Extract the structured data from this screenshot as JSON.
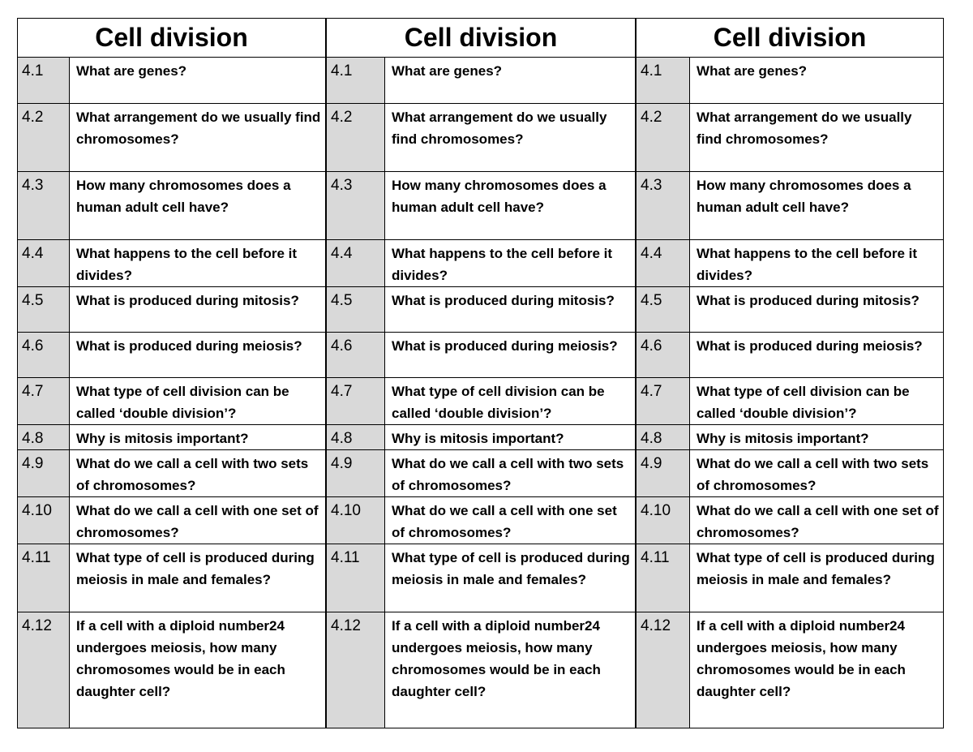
{
  "tables": [
    {
      "title": "Cell division",
      "rows": [
        [
          "4.1",
          "What are genes?"
        ],
        [
          "4.2",
          "What arrangement do we usually find chromosomes?"
        ],
        [
          "4.3",
          "How many chromosomes does a human adult cell have?"
        ],
        [
          "4.4",
          "What happens to the cell before it divides?"
        ],
        [
          "4.5",
          "What is produced during mitosis?"
        ],
        [
          "4.6",
          "What is produced during meiosis?"
        ],
        [
          "4.7",
          "What type of cell division can be called ‘double division’?"
        ],
        [
          "4.8",
          "Why is mitosis important?"
        ],
        [
          "4.9",
          "What do we call a cell with two sets of chromosomes?"
        ],
        [
          "4.10",
          "What do we call a cell with one set of chromosomes?"
        ],
        [
          "4.11",
          "What type of cell is produced during meiosis in male and females?"
        ],
        [
          "4.12",
          "If a cell with a diploid number24 undergoes meiosis, how many chromosomes would be in each daughter cell?"
        ]
      ]
    },
    {
      "title": "Cell division",
      "rows": [
        [
          "4.1",
          "What are genes?"
        ],
        [
          "4.2",
          "What arrangement do we usually find chromosomes?"
        ],
        [
          "4.3",
          "How many chromosomes does a human adult cell have?"
        ],
        [
          "4.4",
          "What happens to the cell before it divides?"
        ],
        [
          "4.5",
          "What is produced during mitosis?"
        ],
        [
          "4.6",
          "What is produced during meiosis?"
        ],
        [
          "4.7",
          "What type of cell division can be called ‘double division’?"
        ],
        [
          "4.8",
          "Why is mitosis important?"
        ],
        [
          "4.9",
          "What do we call a cell with two sets of chromosomes?"
        ],
        [
          "4.10",
          "What do we call a cell with one set of chromosomes?"
        ],
        [
          "4.11",
          "What type of cell is produced during meiosis in male and females?"
        ],
        [
          "4.12",
          "If a cell with a diploid number24 undergoes meiosis, how many chromosomes would be in each daughter cell?"
        ]
      ]
    },
    {
      "title": "Cell division",
      "rows": [
        [
          "4.1",
          "What are genes?"
        ],
        [
          "4.2",
          "What arrangement do we usually find chromosomes?"
        ],
        [
          "4.3",
          "How many chromosomes does a human adult cell have?"
        ],
        [
          "4.4",
          "What happens to the cell before it divides?"
        ],
        [
          "4.5",
          "What is produced during mitosis?"
        ],
        [
          "4.6",
          "What is produced during meiosis?"
        ],
        [
          "4.7",
          "What type of cell division can be called ‘double division’?"
        ],
        [
          "4.8",
          "Why is mitosis important?"
        ],
        [
          "4.9",
          "What do we call a cell with two sets of chromosomes?"
        ],
        [
          "4.10",
          "What do we call a cell with one set of chromosomes?"
        ],
        [
          "4.11",
          "What type of cell is produced during meiosis in male and females?"
        ],
        [
          "4.12",
          "If a cell with a diploid number24 undergoes meiosis, how many chromosomes would be in each daughter cell?"
        ]
      ]
    }
  ]
}
